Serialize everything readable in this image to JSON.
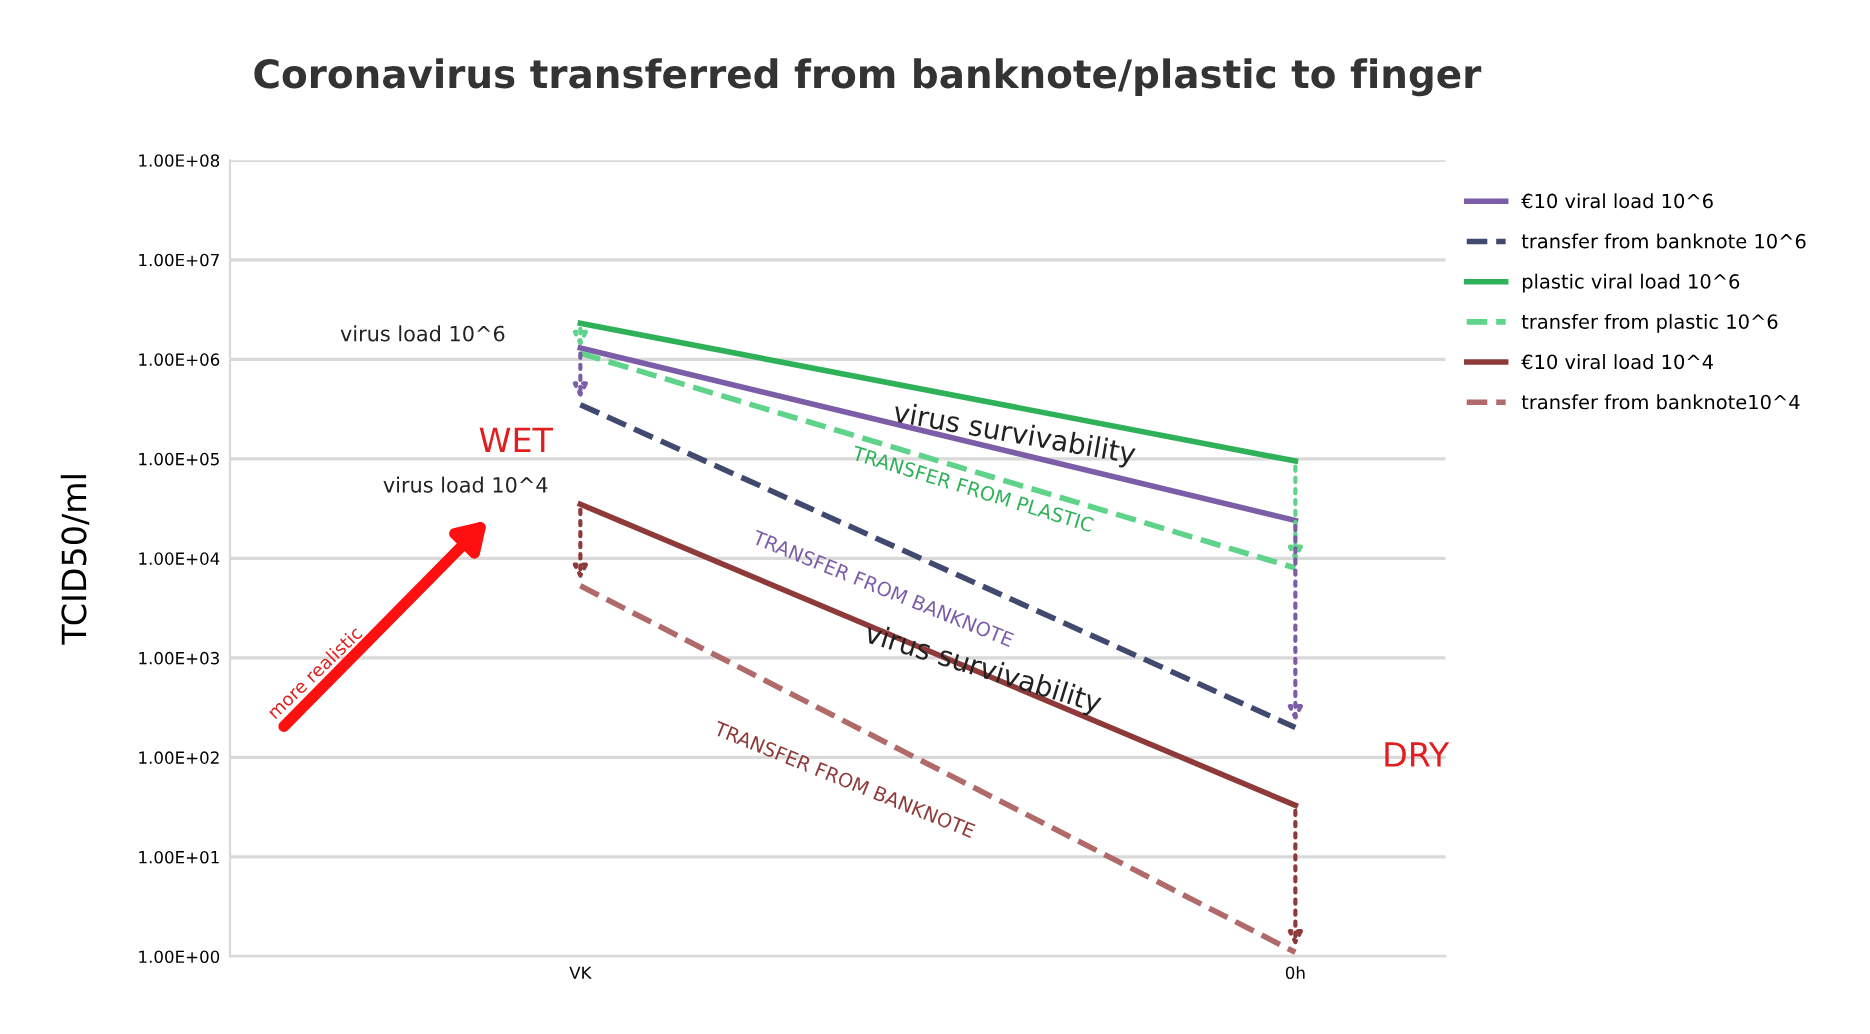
{
  "chart_data": {
    "type": "line",
    "title": "Coronavirus transferred from banknote/plastic to finger",
    "ylabel": "TCID50/ml",
    "categories": [
      "VK",
      "0h"
    ],
    "series": [
      {
        "name": "€10 viral load 10^6",
        "color": "#7b5ea7",
        "values": [
          1300000,
          24000
        ],
        "line_style": "solid"
      },
      {
        "name": "transfer from banknote 10^6",
        "color": "#3f4a6e",
        "values": [
          350000,
          200
        ],
        "line_style": "dashed"
      },
      {
        "name": "plastic viral load 10^6",
        "color": "#2eb158",
        "values": [
          2300000,
          95000
        ],
        "line_style": "solid"
      },
      {
        "name": "transfer from plastic 10^6",
        "color": "#5fd38a",
        "values": [
          1150000,
          8000
        ],
        "line_style": "dashed"
      },
      {
        "name": "€10 viral load 10^4",
        "color": "#8e3a3a",
        "values": [
          35000,
          33
        ],
        "line_style": "solid"
      },
      {
        "name": "transfer from banknote10^4",
        "color": "#b06a6a",
        "values": [
          5300,
          1.1
        ],
        "line_style": "dashed"
      }
    ],
    "log": "y",
    "ylim": [
      1,
      100000000
    ],
    "yticks": [
      {
        "value": 1,
        "label": "1.00E+00"
      },
      {
        "value": 10,
        "label": "1.00E+01"
      },
      {
        "value": 100,
        "label": "1.00E+02"
      },
      {
        "value": 1000,
        "label": "1.00E+03"
      },
      {
        "value": 10000,
        "label": "1.00E+04"
      },
      {
        "value": 100000,
        "label": "1.00E+05"
      },
      {
        "value": 1000000,
        "label": "1.00E+06"
      },
      {
        "value": 10000000,
        "label": "1.00E+07"
      },
      {
        "value": 100000000,
        "label": "1.00E+08"
      }
    ],
    "grid": "y",
    "legend": "right",
    "marker": "none",
    "annotations": [
      "virus load 10^6",
      "virus load 10^4",
      "WET",
      "DRY",
      "more realistic",
      "virus survivability",
      "virus survivability",
      "TRANSFER FROM PLASTIC",
      "TRANSFER FROM BANKNOTE",
      "TRANSFER FROM BANKNOTE"
    ]
  }
}
